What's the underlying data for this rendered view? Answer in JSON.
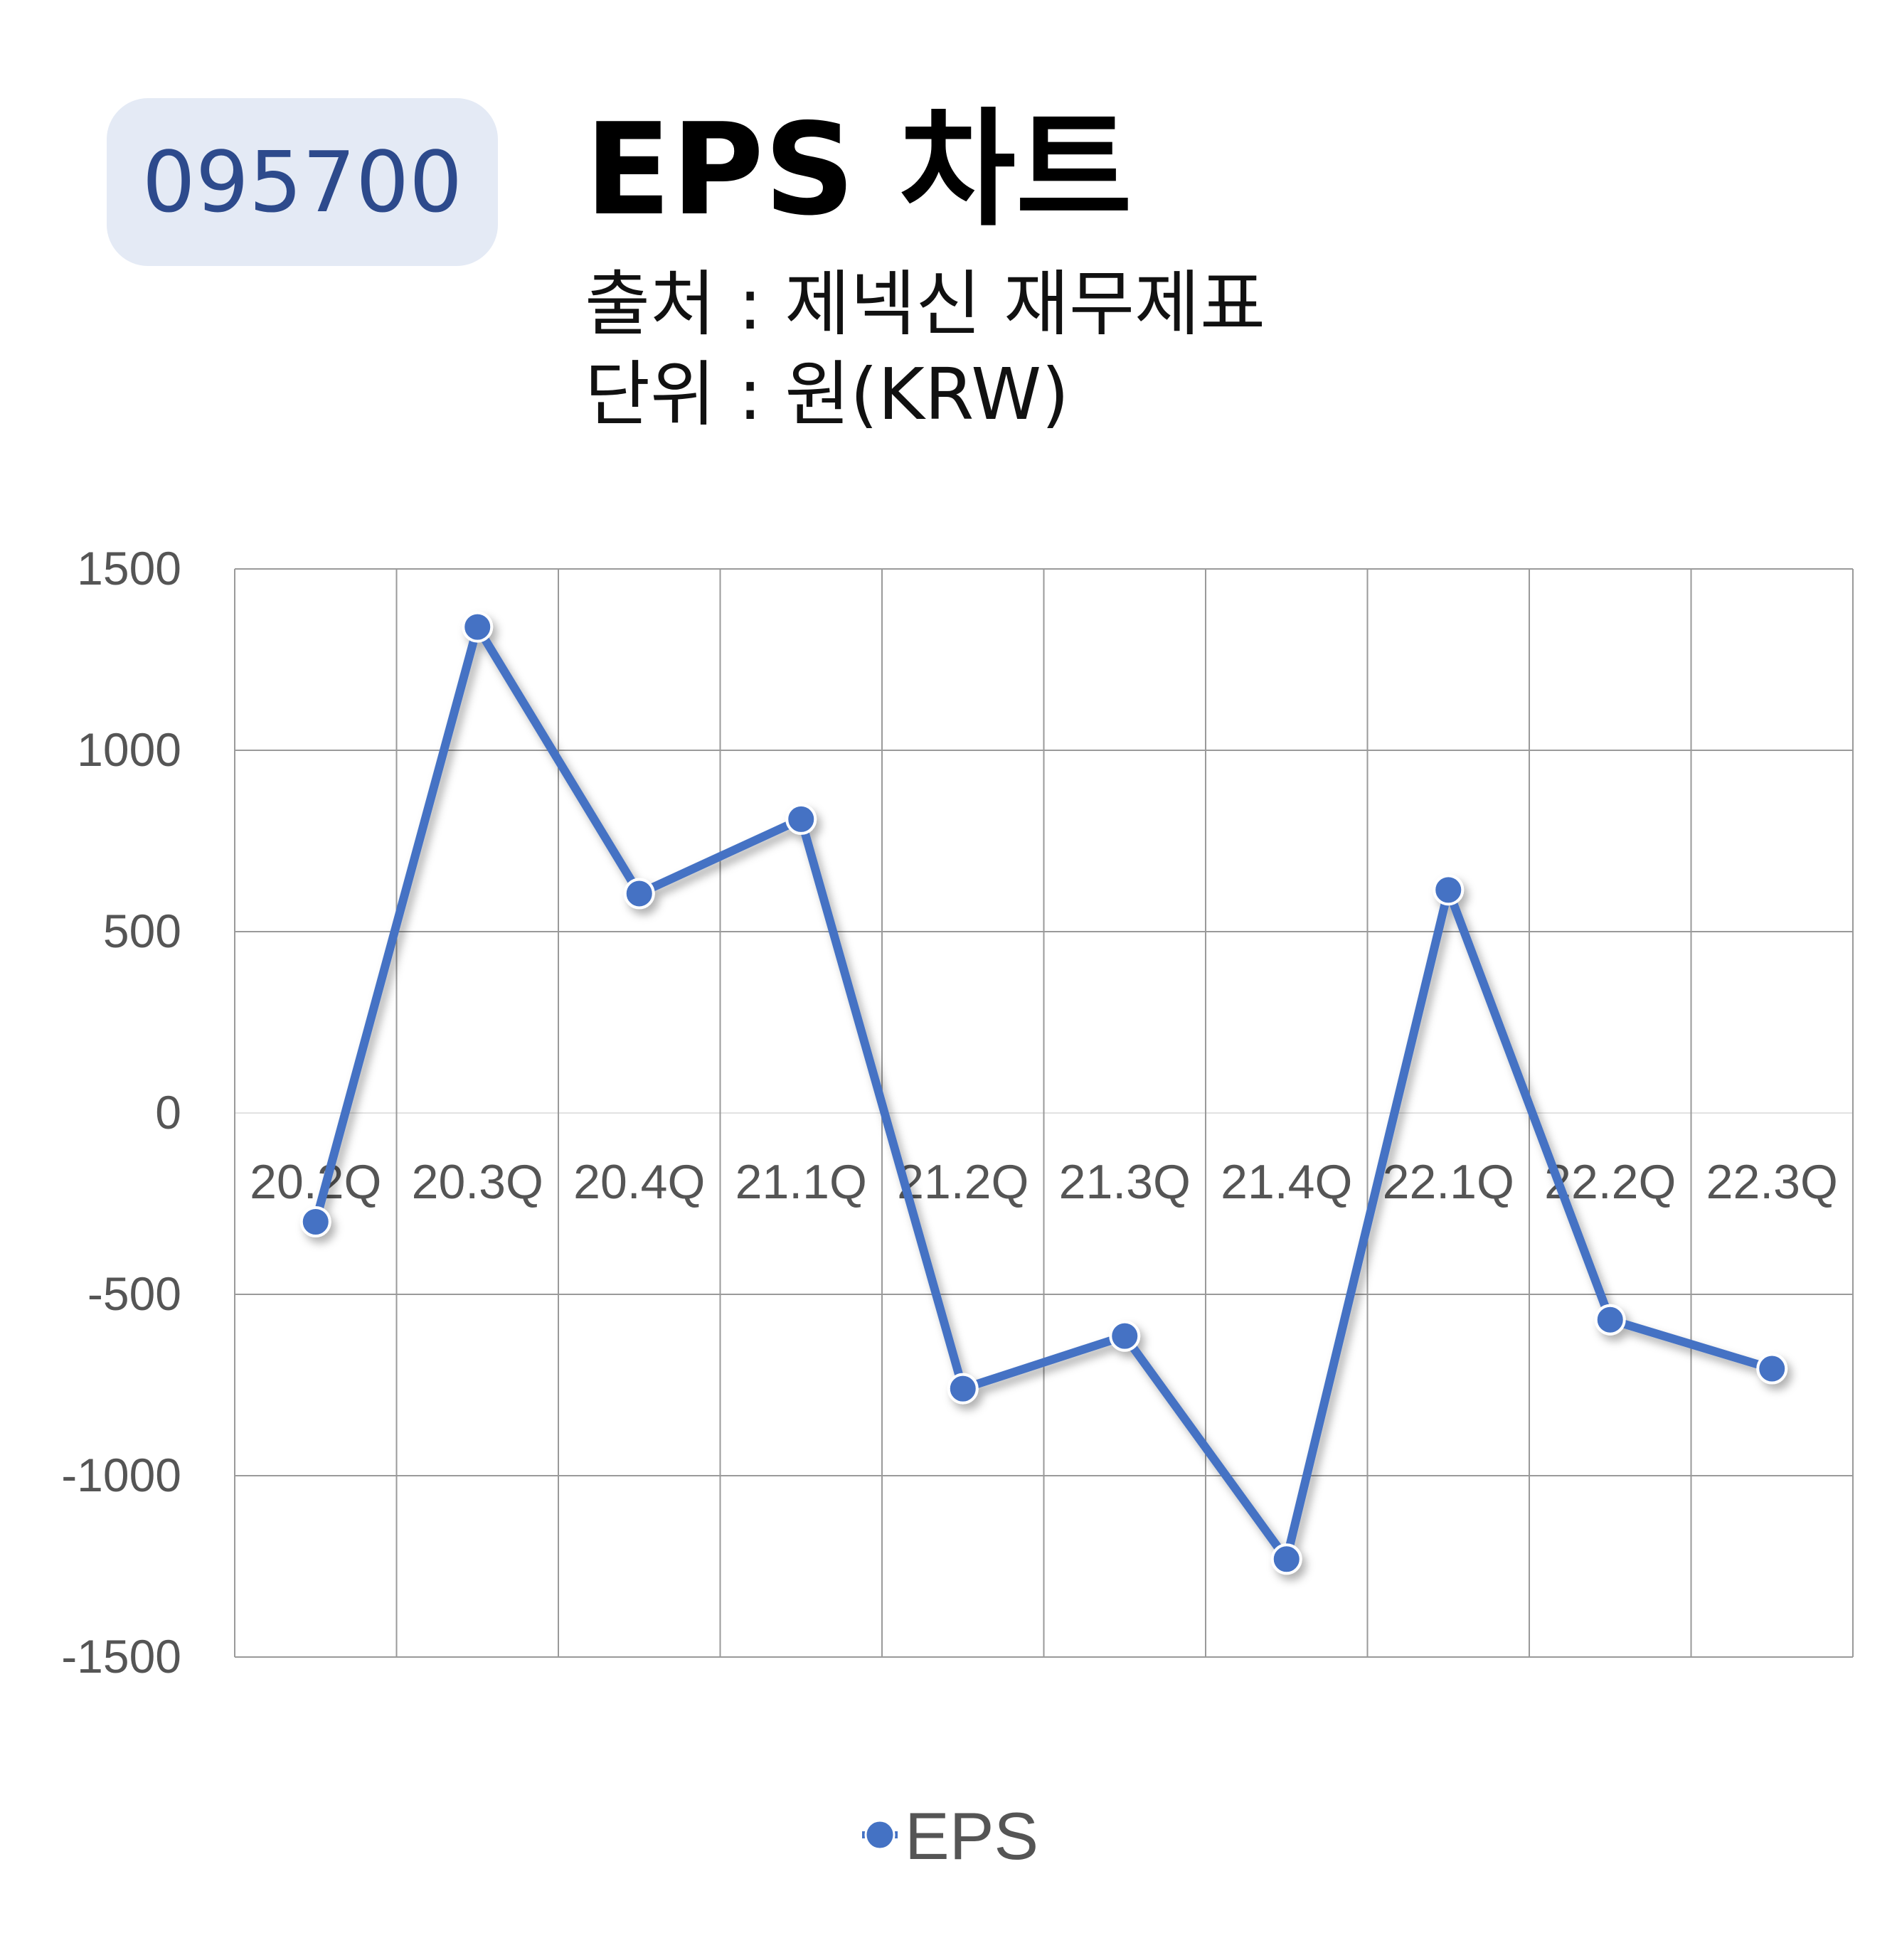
{
  "badge": {
    "code": "095700"
  },
  "header": {
    "title": "EPS 차트",
    "source": "출처 : 제넥신 재무제표",
    "unit": "단위 : 원(KRW)"
  },
  "chart_data": {
    "type": "line",
    "categories": [
      "20.2Q",
      "20.3Q",
      "20.4Q",
      "21.1Q",
      "21.2Q",
      "21.3Q",
      "21.4Q",
      "22.1Q",
      "22.2Q",
      "22.3Q"
    ],
    "series": [
      {
        "name": "EPS",
        "values": [
          -300,
          1340,
          605,
          810,
          -760,
          -615,
          -1230,
          615,
          -570,
          -705
        ],
        "color": "#4472c4"
      }
    ],
    "ylim": [
      -1500,
      1500
    ],
    "yticks": [
      1500,
      1000,
      500,
      0,
      -500,
      -1000,
      -1500
    ],
    "grid": true,
    "legend": "bottom"
  }
}
